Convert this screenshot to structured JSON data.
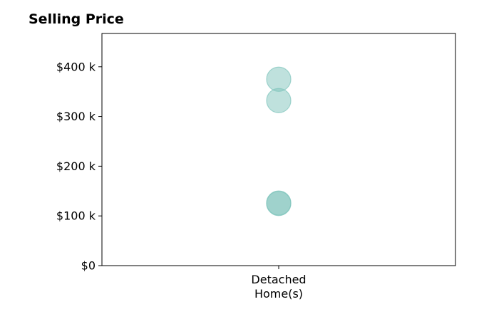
{
  "chart_data": {
    "type": "scatter",
    "title": "Selling Price",
    "xlabel": "",
    "ylabel": "",
    "categories": [
      "Detached Home(s)"
    ],
    "category_label_lines": [
      [
        "Detached",
        "Home(s)"
      ]
    ],
    "y_ticks": [
      0,
      100000,
      200000,
      300000,
      400000
    ],
    "y_tick_labels": [
      "$0",
      "$100 k",
      "$200 k",
      "$300 k",
      "$400 k"
    ],
    "ylim": [
      0,
      467000
    ],
    "grid": false,
    "points": [
      {
        "category": "Detached Home(s)",
        "value": 375000
      },
      {
        "category": "Detached Home(s)",
        "value": 332000
      },
      {
        "category": "Detached Home(s)",
        "value": 126000
      },
      {
        "category": "Detached Home(s)",
        "value": 125000
      }
    ],
    "marker_color": "#7fc4bc"
  }
}
